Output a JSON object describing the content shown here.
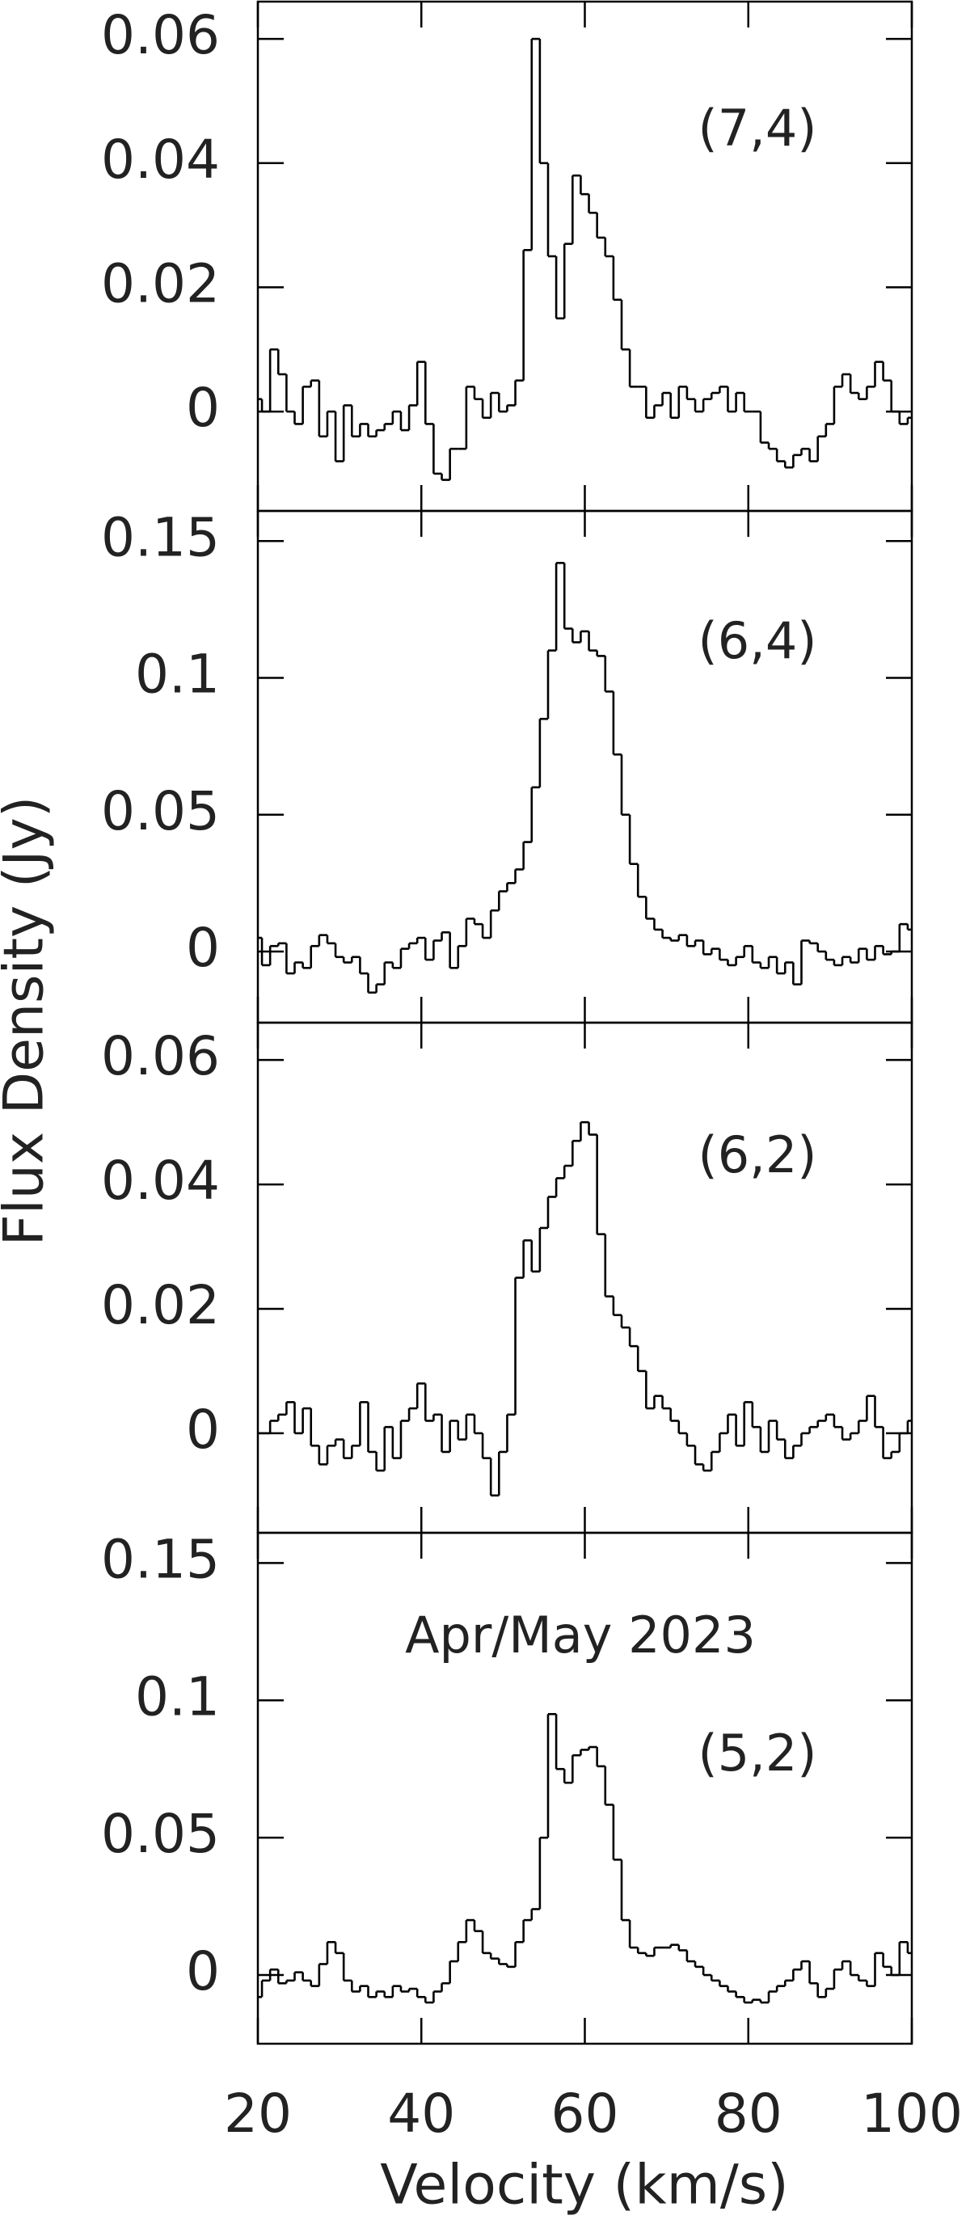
{
  "chart_data": [
    {
      "type": "step",
      "annotation": "(7,4)",
      "color": "#000000",
      "xlim": [
        20,
        100
      ],
      "xticks": [
        20,
        40,
        60,
        80,
        100
      ],
      "ylim": [
        -0.016,
        0.066
      ],
      "yticks": [
        0,
        0.02,
        0.04,
        0.06
      ],
      "x": [
        20,
        21,
        22,
        23,
        24,
        25,
        26,
        27,
        28,
        29,
        30,
        31,
        32,
        33,
        34,
        35,
        36,
        37,
        38,
        39,
        40,
        41,
        42,
        43,
        44,
        45,
        46,
        47,
        48,
        49,
        50,
        51,
        52,
        53,
        54,
        55,
        56,
        57,
        58,
        59,
        60,
        61,
        62,
        63,
        64,
        65,
        66,
        67,
        68,
        69,
        70,
        71,
        72,
        73,
        74,
        75,
        76,
        77,
        78,
        79,
        80,
        81,
        82,
        83,
        84,
        85,
        86,
        87,
        88,
        89,
        90,
        91,
        92,
        93,
        94,
        95,
        96,
        97,
        98,
        99,
        100
      ],
      "values": [
        0.002,
        0.0,
        0.01,
        0.006,
        0.0,
        -0.002,
        0.004,
        0.005,
        -0.004,
        0.0,
        -0.008,
        0.001,
        -0.004,
        -0.002,
        -0.004,
        -0.003,
        -0.002,
        0.0,
        -0.003,
        0.001,
        0.008,
        -0.002,
        -0.01,
        -0.011,
        -0.006,
        -0.006,
        0.004,
        0.002,
        -0.001,
        0.003,
        0.0,
        0.001,
        0.005,
        0.026,
        0.06,
        0.04,
        0.025,
        0.015,
        0.027,
        0.038,
        0.035,
        0.032,
        0.028,
        0.025,
        0.018,
        0.01,
        0.004,
        0.004,
        -0.001,
        0.001,
        0.003,
        -0.001,
        0.004,
        0.002,
        0.0,
        0.002,
        0.003,
        0.004,
        0.0,
        0.003,
        0.0,
        0.0,
        -0.005,
        -0.006,
        -0.008,
        -0.009,
        -0.007,
        -0.006,
        -0.008,
        -0.004,
        -0.002,
        0.004,
        0.006,
        0.003,
        0.002,
        0.004,
        0.008,
        0.005,
        0.0,
        -0.002,
        -0.001
      ]
    },
    {
      "type": "step",
      "annotation": "(6,4)",
      "ylabel": "Flux Density (Jy)",
      "color": "#000000",
      "xlim": [
        20,
        100
      ],
      "xticks": [
        20,
        40,
        60,
        80,
        100
      ],
      "ylim": [
        -0.026,
        0.161
      ],
      "yticks": [
        0,
        0.05,
        0.1,
        0.15
      ],
      "x": [
        20,
        21,
        22,
        23,
        24,
        25,
        26,
        27,
        28,
        29,
        30,
        31,
        32,
        33,
        34,
        35,
        36,
        37,
        38,
        39,
        40,
        41,
        42,
        43,
        44,
        45,
        46,
        47,
        48,
        49,
        50,
        51,
        52,
        53,
        54,
        55,
        56,
        57,
        58,
        59,
        60,
        61,
        62,
        63,
        64,
        65,
        66,
        67,
        68,
        69,
        70,
        71,
        72,
        73,
        74,
        75,
        76,
        77,
        78,
        79,
        80,
        81,
        82,
        83,
        84,
        85,
        86,
        87,
        88,
        89,
        90,
        91,
        92,
        93,
        94,
        95,
        96,
        97,
        98,
        99,
        100
      ],
      "values": [
        0.005,
        -0.005,
        0.002,
        0.003,
        -0.008,
        -0.004,
        -0.006,
        0.002,
        0.006,
        0.003,
        -0.002,
        -0.004,
        -0.002,
        -0.008,
        -0.015,
        -0.012,
        -0.004,
        -0.006,
        0.001,
        0.003,
        0.005,
        -0.003,
        0.004,
        0.007,
        -0.006,
        0.002,
        0.012,
        0.01,
        0.005,
        0.015,
        0.022,
        0.025,
        0.03,
        0.04,
        0.06,
        0.085,
        0.11,
        0.142,
        0.118,
        0.113,
        0.117,
        0.11,
        0.108,
        0.095,
        0.072,
        0.05,
        0.032,
        0.02,
        0.012,
        0.008,
        0.005,
        0.004,
        0.006,
        0.002,
        0.004,
        -0.001,
        0.001,
        -0.003,
        -0.005,
        -0.002,
        0.002,
        -0.004,
        -0.006,
        -0.002,
        -0.008,
        -0.004,
        -0.012,
        0.004,
        0.003,
        0.0,
        -0.003,
        -0.005,
        -0.002,
        -0.004,
        0.001,
        -0.003,
        0.002,
        -0.001,
        0.0,
        0.01,
        0.008
      ]
    },
    {
      "type": "step",
      "annotation": "(6,2)",
      "color": "#000000",
      "xlim": [
        20,
        100
      ],
      "xticks": [
        20,
        40,
        60,
        80,
        100
      ],
      "ylim": [
        -0.016,
        0.066
      ],
      "yticks": [
        0,
        0.02,
        0.04,
        0.06
      ],
      "x": [
        20,
        21,
        22,
        23,
        24,
        25,
        26,
        27,
        28,
        29,
        30,
        31,
        32,
        33,
        34,
        35,
        36,
        37,
        38,
        39,
        40,
        41,
        42,
        43,
        44,
        45,
        46,
        47,
        48,
        49,
        50,
        51,
        52,
        53,
        54,
        55,
        56,
        57,
        58,
        59,
        60,
        61,
        62,
        63,
        64,
        65,
        66,
        67,
        68,
        69,
        70,
        71,
        72,
        73,
        74,
        75,
        76,
        77,
        78,
        79,
        80,
        81,
        82,
        83,
        84,
        85,
        86,
        87,
        88,
        89,
        90,
        91,
        92,
        93,
        94,
        95,
        96,
        97,
        98,
        99,
        100
      ],
      "values": [
        0.0,
        0.0,
        0.002,
        0.003,
        0.005,
        0.0,
        0.004,
        -0.002,
        -0.005,
        -0.002,
        -0.001,
        -0.004,
        -0.002,
        0.005,
        -0.003,
        -0.006,
        0.001,
        -0.004,
        0.002,
        0.004,
        0.008,
        0.002,
        0.003,
        -0.003,
        0.002,
        -0.001,
        0.003,
        0.0,
        -0.004,
        -0.01,
        -0.003,
        0.003,
        0.025,
        0.031,
        0.026,
        0.033,
        0.038,
        0.041,
        0.043,
        0.047,
        0.05,
        0.048,
        0.032,
        0.022,
        0.019,
        0.017,
        0.014,
        0.01,
        0.004,
        0.006,
        0.004,
        0.002,
        0.0,
        -0.002,
        -0.005,
        -0.006,
        -0.003,
        0.0,
        0.003,
        -0.002,
        0.005,
        0.001,
        -0.003,
        0.002,
        -0.001,
        -0.004,
        -0.002,
        0.0,
        0.001,
        0.002,
        0.003,
        0.001,
        -0.001,
        0.0,
        0.002,
        0.006,
        0.001,
        -0.004,
        -0.003,
        0.0,
        0.002
      ]
    },
    {
      "type": "step",
      "annotation": "(5,2)",
      "note": "Apr/May 2023",
      "xlabel": "Velocity (km/s)",
      "color": "#000000",
      "xlim": [
        20,
        100
      ],
      "xticks": [
        20,
        40,
        60,
        80,
        100
      ],
      "ylim": [
        -0.025,
        0.161
      ],
      "yticks": [
        0,
        0.05,
        0.1,
        0.15
      ],
      "x": [
        20,
        21,
        22,
        23,
        24,
        25,
        26,
        27,
        28,
        29,
        30,
        31,
        32,
        33,
        34,
        35,
        36,
        37,
        38,
        39,
        40,
        41,
        42,
        43,
        44,
        45,
        46,
        47,
        48,
        49,
        50,
        51,
        52,
        53,
        54,
        55,
        56,
        57,
        58,
        59,
        60,
        61,
        62,
        63,
        64,
        65,
        66,
        67,
        68,
        69,
        70,
        71,
        72,
        73,
        74,
        75,
        76,
        77,
        78,
        79,
        80,
        81,
        82,
        83,
        84,
        85,
        86,
        87,
        88,
        89,
        90,
        91,
        92,
        93,
        94,
        95,
        96,
        97,
        98,
        99,
        100
      ],
      "values": [
        -0.008,
        -0.002,
        0.002,
        -0.003,
        -0.002,
        0.001,
        -0.002,
        -0.004,
        0.004,
        0.012,
        0.008,
        -0.002,
        -0.006,
        -0.004,
        -0.008,
        -0.006,
        -0.008,
        -0.004,
        -0.006,
        -0.005,
        -0.008,
        -0.01,
        -0.006,
        -0.003,
        0.005,
        0.012,
        0.02,
        0.016,
        0.008,
        0.006,
        0.004,
        0.003,
        0.012,
        0.02,
        0.024,
        0.05,
        0.095,
        0.075,
        0.07,
        0.08,
        0.082,
        0.083,
        0.076,
        0.062,
        0.042,
        0.02,
        0.01,
        0.008,
        0.007,
        0.01,
        0.01,
        0.011,
        0.009,
        0.005,
        0.003,
        0.0,
        -0.002,
        -0.004,
        -0.006,
        -0.008,
        -0.01,
        -0.009,
        -0.01,
        -0.006,
        -0.004,
        -0.002,
        0.002,
        0.005,
        -0.003,
        -0.008,
        -0.005,
        0.002,
        0.005,
        0.0,
        -0.002,
        -0.004,
        0.008,
        0.003,
        0.0,
        0.012,
        0.008
      ]
    }
  ]
}
